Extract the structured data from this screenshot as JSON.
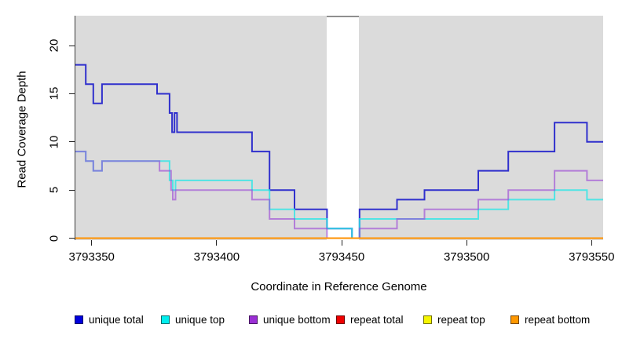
{
  "figure": {
    "xlabel": "Coordinate in Reference Genome",
    "ylabel": "Read Coverage Depth"
  },
  "chart_data": {
    "type": "step-line",
    "title": "",
    "xlabel": "Coordinate in Reference Genome",
    "ylabel": "Read Coverage Depth",
    "x_ticks": [
      3793350,
      3793400,
      3793450,
      3793500,
      3793550
    ],
    "y_ticks": [
      0,
      5,
      10,
      15,
      20
    ],
    "xlim": [
      3793343,
      3793555
    ],
    "ylim": [
      0,
      23
    ],
    "plot_background": "#dbdbdb",
    "gap_region": {
      "x1": 3793444,
      "x2": 3793457,
      "color": "#ffffff"
    },
    "legend_position": "bottom",
    "grid": false,
    "series": [
      {
        "name": "unique total",
        "line_color": "#2222cc",
        "line_opacity": 0.92,
        "legend_color": "#0000dd",
        "points": [
          [
            3793343,
            18
          ],
          [
            3793347.5,
            16
          ],
          [
            3793350.5,
            14
          ],
          [
            3793354,
            16
          ],
          [
            3793376,
            15
          ],
          [
            3793381,
            13
          ],
          [
            3793382,
            11
          ],
          [
            3793383,
            13
          ],
          [
            3793384,
            11
          ],
          [
            3793414,
            9
          ],
          [
            3793421,
            5
          ],
          [
            3793431,
            3
          ],
          [
            3793444,
            1
          ],
          [
            3793454,
            0
          ],
          [
            3793457,
            3
          ],
          [
            3793472,
            4
          ],
          [
            3793483,
            5
          ],
          [
            3793504.5,
            7
          ],
          [
            3793516.5,
            9
          ],
          [
            3793535,
            12
          ],
          [
            3793548,
            10
          ],
          [
            3793555,
            10
          ]
        ]
      },
      {
        "name": "unique top",
        "line_color": "#2de6e6",
        "line_opacity": 0.8,
        "legend_color": "#00eeee",
        "points": [
          [
            3793343,
            9
          ],
          [
            3793347.5,
            8
          ],
          [
            3793350.5,
            7
          ],
          [
            3793354,
            8
          ],
          [
            3793381,
            6
          ],
          [
            3793382.3,
            5
          ],
          [
            3793383.4,
            6
          ],
          [
            3793414,
            5
          ],
          [
            3793421,
            3
          ],
          [
            3793431,
            2
          ],
          [
            3793444,
            1
          ],
          [
            3793454,
            0
          ],
          [
            3793457,
            2
          ],
          [
            3793504.5,
            3
          ],
          [
            3793516.5,
            4
          ],
          [
            3793535,
            5
          ],
          [
            3793548,
            4
          ],
          [
            3793555,
            4
          ]
        ]
      },
      {
        "name": "unique bottom",
        "line_color": "#9b46d7",
        "line_opacity": 0.62,
        "legend_color": "#9b2fd5",
        "points": [
          [
            3793343,
            9
          ],
          [
            3793347.5,
            8
          ],
          [
            3793350.5,
            7
          ],
          [
            3793354,
            8
          ],
          [
            3793377,
            7
          ],
          [
            3793381.6,
            5
          ],
          [
            3793382.3,
            4
          ],
          [
            3793383.4,
            5
          ],
          [
            3793414,
            4
          ],
          [
            3793421,
            2
          ],
          [
            3793431,
            1
          ],
          [
            3793444,
            0
          ],
          [
            3793457,
            1
          ],
          [
            3793472,
            2
          ],
          [
            3793483,
            3
          ],
          [
            3793504.5,
            4
          ],
          [
            3793516.5,
            5
          ],
          [
            3793535,
            7
          ],
          [
            3793548,
            6
          ],
          [
            3793555,
            6
          ]
        ]
      },
      {
        "name": "repeat total",
        "line_color": "#dd0000",
        "line_opacity": 1,
        "legend_color": "#ee0000",
        "points": [
          [
            3793343,
            0
          ],
          [
            3793555,
            0
          ]
        ]
      },
      {
        "name": "repeat top",
        "line_color": "#f0f000",
        "line_opacity": 1,
        "legend_color": "#f5f500",
        "points": [
          [
            3793343,
            0
          ],
          [
            3793555,
            0
          ]
        ]
      },
      {
        "name": "repeat bottom",
        "line_color": "#ff9100",
        "line_opacity": 1,
        "legend_color": "#ff9800",
        "points": [
          [
            3793343,
            0
          ],
          [
            3793555,
            0
          ]
        ]
      }
    ]
  }
}
